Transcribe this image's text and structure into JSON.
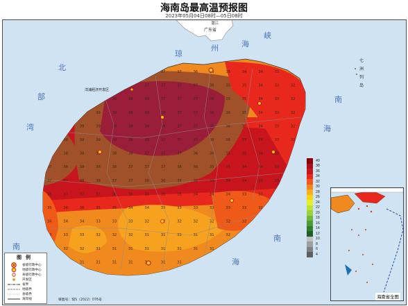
{
  "header": {
    "title": "海南岛最高温预报图",
    "subtitle": "2023年05月04日08时—05日08时"
  },
  "sea_labels": {
    "qiongzhou": [
      "琼",
      "州",
      "海",
      "峡"
    ],
    "beibu": [
      "北",
      "部",
      "湾"
    ],
    "nanhai_east": [
      "南",
      "海"
    ],
    "nanhai_south": [
      "南",
      "海"
    ],
    "nanhai_west": "南",
    "qizhou": [
      "七",
      "洲",
      "列",
      "岛"
    ]
  },
  "places": {
    "guangdong": "广东省",
    "zhanjiang": "湛江",
    "yangpu": "洋浦经济开发区"
  },
  "color_scale": {
    "labels": [
      "40",
      "38",
      "36",
      "34",
      "32",
      "30",
      "28",
      "26",
      "24",
      "22",
      "20",
      "18",
      "16",
      "14",
      "12",
      "10",
      "8",
      "6",
      "4"
    ],
    "colors": [
      "#8b0000",
      "#a8101a",
      "#c8141d",
      "#e8281c",
      "#ef5a18",
      "#f2861e",
      "#f7b01b",
      "#f6d413",
      "#e6ef2a",
      "#bde03a",
      "#9fcf3a",
      "#70b83a",
      "#4e9d34",
      "#2f7f2c",
      "#1f5f22",
      "#bfbfbf",
      "#9f9f9f",
      "#808080",
      "#5f5f5f"
    ]
  },
  "legend": {
    "title": "图例",
    "items": [
      {
        "label": "省级行政中心",
        "icon": "provincial-capital-icon"
      },
      {
        "label": "地级行政中心",
        "icon": "prefecture-center-icon"
      },
      {
        "label": "县级行政中心",
        "icon": "county-center-icon"
      },
      {
        "label": "开发区",
        "icon": "development-zone-icon"
      },
      {
        "label": "省界",
        "icon": "province-boundary-icon"
      },
      {
        "label": "地级界",
        "icon": "prefecture-boundary-icon"
      },
      {
        "label": "县级界",
        "icon": "county-boundary-icon"
      },
      {
        "label": "海岸线",
        "icon": "coastline-icon"
      }
    ]
  },
  "review_number": "审图号：琼S（2022）076号",
  "inset": {
    "label": "海南省全图"
  },
  "grid_values": {
    "rows": [
      "37 37 37 37 37 37 37 37 37 36 36 35 34 34 33 32",
      "38 38 38 39 38 37 37 37 37 37 36 35 35 34 33 32",
      "38 39 39 38 38 38 38 37 37 37 36 35 35 34 33 32",
      "39 39 39 39 39 38 38 38 37 37 36 36 35 34 33 32",
      "38 39 39 39 39 38 38 38 37 37 36 36 35 34 33 32",
      "38 38 39 39 39 38 38 37 37 37 36 36 35 34 33 32",
      "38 38 38 39 38 38 37 37 37 36 36 35 35 34 33 32",
      "37 38 38 38 38 37 37 37 36 36 35 35 34 34 33 32",
      "37 37 38 38 37 37 36 36 36 35 35 34 34 33 33 32",
      "36 37 37 37 36 36 35 35 35 34 34 34 33 33 32 32",
      "35 36 36 35 35 34 34 33 33 33 33 33 33 32 32 31",
      "34 34 34 33 33 33 32 32 32 32 32 32 32 32 31 31",
      "33 33 33 32 32 32 31 31 31 31 31 32 32 31 31 31",
      "33 32 32 31 31 31 31 31 31 31 31 31 31 31 31 31",
      "32 32 31 31 31 31 31 31 31 31 31 31 31 31 31 31"
    ]
  }
}
